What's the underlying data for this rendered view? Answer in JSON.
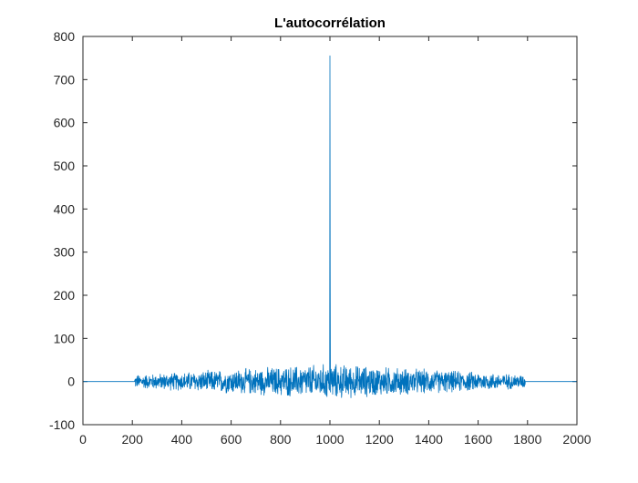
{
  "chart_data": {
    "type": "line",
    "title": "L'autocorrélation",
    "xlabel": "",
    "ylabel": "",
    "xlim": [
      0,
      2000
    ],
    "ylim": [
      -100,
      800
    ],
    "xticks": [
      0,
      200,
      400,
      600,
      800,
      1000,
      1200,
      1400,
      1600,
      1800,
      2000
    ],
    "yticks": [
      -100,
      0,
      100,
      200,
      300,
      400,
      500,
      600,
      700,
      800
    ],
    "grid": false,
    "box": true,
    "series_color": "#0072BD",
    "series": [
      {
        "x_range": [
          1,
          1999
        ],
        "peak": {
          "x": 1000,
          "y": 755
        },
        "secondary_peak": {
          "x": 1001,
          "y": 245
        },
        "noise_support": [
          210,
          1790
        ],
        "noise_amplitude_max": 45,
        "flat_value": 0
      }
    ]
  }
}
